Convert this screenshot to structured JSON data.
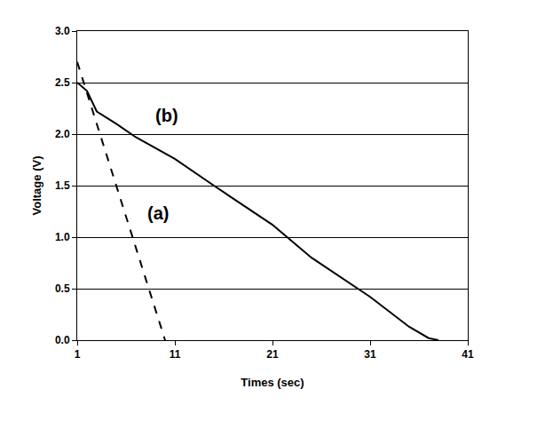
{
  "chart_data": {
    "type": "line",
    "x_label": "Times (sec)",
    "y_label": "Voltage (V)",
    "xlim": [
      1,
      41
    ],
    "xticks": [
      1,
      11,
      21,
      31,
      41
    ],
    "ylim": [
      0,
      3
    ],
    "yticks": [
      {
        "value": 0,
        "label": "0.0"
      },
      0.5,
      {
        "value": 1,
        "label": "1.0"
      },
      1.5,
      {
        "value": 2,
        "label": "2.0"
      },
      2.5,
      {
        "value": 3,
        "label": "3.0"
      }
    ],
    "grid": true,
    "series": [
      {
        "name": "(a)",
        "color": "#000000",
        "line_style": "dash",
        "x": [
          1,
          2,
          3,
          4,
          5,
          6,
          7,
          8,
          9,
          10
        ],
        "values": [
          2.7,
          2.4,
          2.1,
          1.8,
          1.5,
          1.2,
          0.9,
          0.6,
          0.3,
          0.0
        ]
      },
      {
        "name": "(b)",
        "color": "#000000",
        "line_style": "solid",
        "x": [
          1,
          2,
          3,
          5,
          7,
          11,
          15,
          21,
          25,
          31,
          35,
          37,
          38
        ],
        "values": [
          2.5,
          2.42,
          2.22,
          2.1,
          1.97,
          1.76,
          1.5,
          1.12,
          0.8,
          0.42,
          0.13,
          0.02,
          0.0
        ]
      }
    ],
    "annotations": [
      {
        "text": "(a)",
        "x": 9.3,
        "y": 1.23
      },
      {
        "text": "(b)",
        "x": 10.2,
        "y": 2.18
      }
    ]
  }
}
